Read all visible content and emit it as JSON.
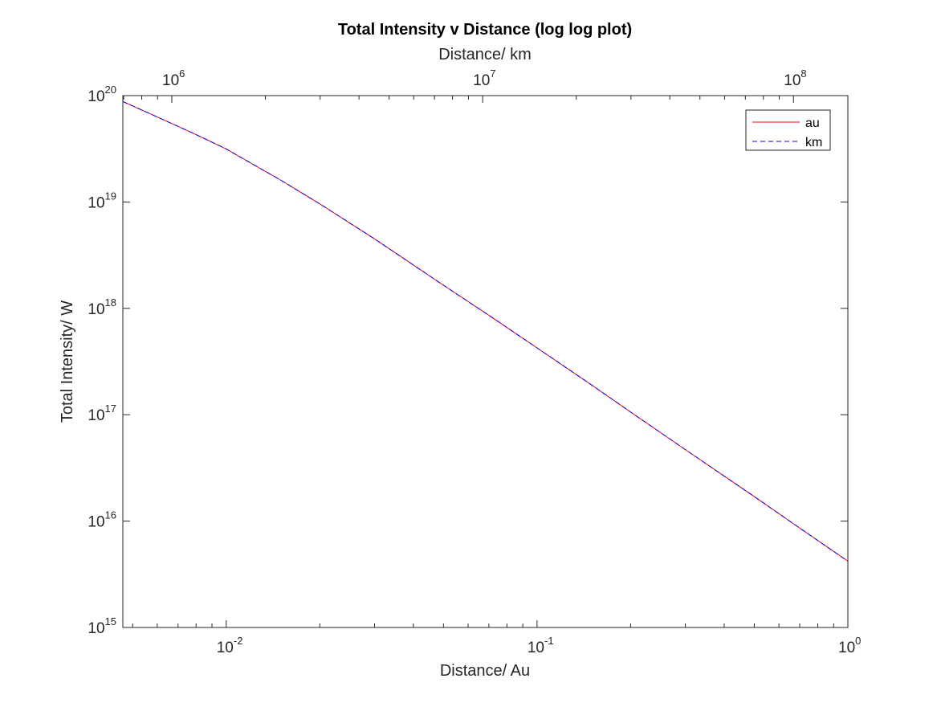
{
  "chart_data": {
    "type": "line",
    "title": "Total Intensity v Distance  (log log plot)",
    "xlabel_bottom": "Distance/ Au",
    "xlabel_top": "Distance/ km",
    "ylabel": "Total Intensity/ W",
    "x_scale": "log",
    "y_scale": "log",
    "xlim_bottom": [
      0.00465,
      1
    ],
    "xlim_top": [
      695700,
      149597870.7
    ],
    "ylim": [
      1000000000000000.0,
      1e+20
    ],
    "grid": false,
    "legend_position": "top-right",
    "x_ticks_bottom": [
      {
        "base": "10",
        "exp": "-2",
        "value": 0.01
      },
      {
        "base": "10",
        "exp": "-1",
        "value": 0.1
      },
      {
        "base": "10",
        "exp": "0",
        "value": 1
      }
    ],
    "x_ticks_top": [
      {
        "base": "10",
        "exp": "6",
        "value": 1000000
      },
      {
        "base": "10",
        "exp": "7",
        "value": 10000000
      },
      {
        "base": "10",
        "exp": "8",
        "value": 100000000
      }
    ],
    "y_ticks": [
      {
        "base": "10",
        "exp": "15",
        "value": 1000000000000000.0
      },
      {
        "base": "10",
        "exp": "16",
        "value": 1e+16
      },
      {
        "base": "10",
        "exp": "17",
        "value": 1e+17
      },
      {
        "base": "10",
        "exp": "18",
        "value": 1e+18
      },
      {
        "base": "10",
        "exp": "19",
        "value": 1e+19
      },
      {
        "base": "10",
        "exp": "20",
        "value": 1e+20
      }
    ],
    "series": [
      {
        "name": "au",
        "color": "#ff0000",
        "line_style": "solid",
        "x": [
          0.00465,
          0.006,
          0.008,
          0.01,
          0.015,
          0.02,
          0.03,
          0.05,
          0.07,
          0.1,
          0.15,
          0.2,
          0.3,
          0.5,
          0.7,
          1.0
        ],
        "y": [
          8.8e+19,
          6.3e+19,
          4.3e+19,
          3.15e+19,
          1.6e+19,
          9.6e+18,
          4.5e+18,
          1.65e+18,
          8.6e+17,
          4.25e+17,
          1.9e+17,
          1.06e+17,
          4.7e+16,
          1.7e+16,
          8600000000000000.0,
          4200000000000000.0
        ]
      },
      {
        "name": "km",
        "color": "#0000ff",
        "line_style": "dashed",
        "x": [
          0.00465,
          0.006,
          0.008,
          0.01,
          0.015,
          0.02,
          0.03,
          0.05,
          0.07,
          0.1,
          0.15,
          0.2,
          0.3,
          0.5,
          0.7,
          1.0
        ],
        "y": [
          8.8e+19,
          6.3e+19,
          4.3e+19,
          3.15e+19,
          1.6e+19,
          9.6e+18,
          4.5e+18,
          1.65e+18,
          8.6e+17,
          4.25e+17,
          1.9e+17,
          1.06e+17,
          4.7e+16,
          1.7e+16,
          8600000000000000.0,
          4200000000000000.0
        ]
      }
    ]
  }
}
